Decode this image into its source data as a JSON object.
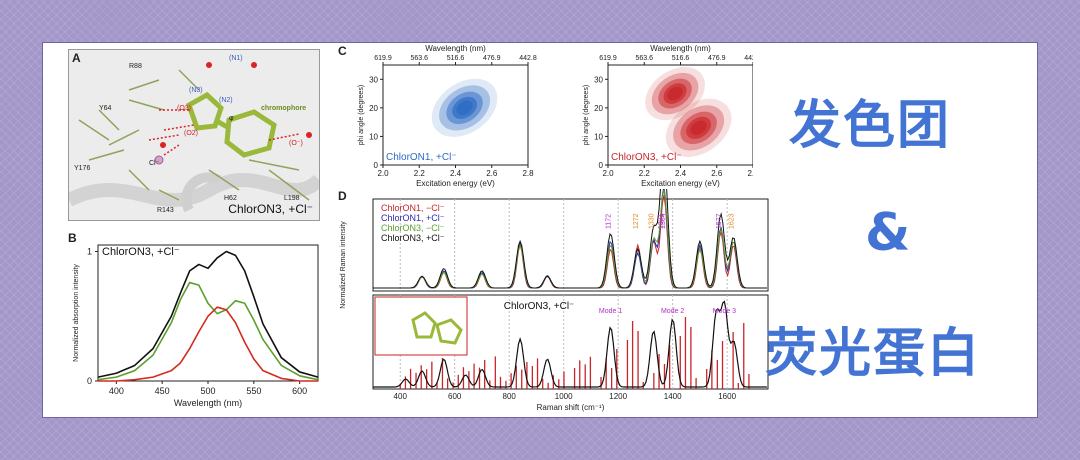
{
  "title": {
    "line1": "发色团",
    "amp": "&",
    "line2": "荧光蛋白"
  },
  "panel_a": {
    "label": "A",
    "caption": "ChlorON3, +Cl⁻",
    "residues": [
      "R88",
      "Y64",
      "Y176",
      "R143",
      "H62",
      "L198"
    ],
    "atoms": [
      "(N1)",
      "(N3)",
      "(N2)",
      "(O3)",
      "(O2)",
      "(O⁻)",
      "Cl⁻",
      "φ"
    ],
    "chromophore_label": "chromophore"
  },
  "panel_b": {
    "label": "B",
    "legend": "ChlorON3, +Cl⁻",
    "xlabel": "Wavelength (nm)",
    "ylabel": "Normalized absorption intensity",
    "xticks": [
      "400",
      "450",
      "500",
      "550",
      "600"
    ],
    "yticks": [
      "0",
      "1"
    ]
  },
  "panel_c": {
    "label": "C",
    "top_label": "Wavelength (nm)",
    "top_ticks": [
      "619.9",
      "563.6",
      "516.6",
      "476.9",
      "442.8"
    ],
    "xlabel": "Excitation energy (eV)",
    "xticks": [
      "2.0",
      "2.2",
      "2.4",
      "2.6",
      "2.8"
    ],
    "ylabel": "phi angle (degrees)",
    "yticks": [
      "0",
      "10",
      "20",
      "30"
    ],
    "left_legend": "ChlorON1, +Cl⁻",
    "right_legend": "ChlorON3, +Cl⁻",
    "left_color": "#2c6bc4",
    "right_color": "#c8262a"
  },
  "panel_d": {
    "label": "D",
    "ylabel_top": "Normalized Raman intensity",
    "xlabel": "Raman shift (cm⁻¹)",
    "xticks": [
      "400",
      "600",
      "800",
      "1000",
      "1200",
      "1400",
      "1600"
    ],
    "legend": [
      {
        "name": "ChlorON1, −Cl⁻",
        "color": "#c8262a"
      },
      {
        "name": "ChlorON1, +Cl⁻",
        "color": "#2a2ab0"
      },
      {
        "name": "ChlorON3, −Cl⁻",
        "color": "#5aa02c"
      },
      {
        "name": "ChlorON3, +Cl⁻",
        "color": "#111111"
      }
    ],
    "peak_labels": [
      {
        "text": "1172",
        "color": "#b12fc9"
      },
      {
        "text": "1272",
        "color": "#e08a1c"
      },
      {
        "text": "1330",
        "color": "#e08a1c"
      },
      {
        "text": "1371",
        "color": "#b12fc9"
      },
      {
        "text": "1364",
        "color": "#b12fc9"
      },
      {
        "text": "1577",
        "color": "#b12fc9"
      },
      {
        "text": "1623",
        "color": "#e08a1c"
      }
    ],
    "lower_caption": "ChlorON3, +Cl⁻",
    "modes": [
      "Mode 1",
      "Mode 2",
      "Mode 3"
    ]
  },
  "chart_data": [
    {
      "type": "line",
      "panel": "B",
      "xlabel": "Wavelength (nm)",
      "ylabel": "Normalized absorption intensity",
      "xlim": [
        380,
        620
      ],
      "ylim": [
        0,
        1.05
      ],
      "x": [
        380,
        400,
        420,
        440,
        460,
        470,
        480,
        490,
        500,
        510,
        520,
        530,
        540,
        550,
        560,
        580,
        600,
        620
      ],
      "series": [
        {
          "name": "ChlorON3, +Cl⁻",
          "color": "#111111",
          "values": [
            0.03,
            0.06,
            0.12,
            0.25,
            0.5,
            0.68,
            0.85,
            0.9,
            0.87,
            0.95,
            1.0,
            0.97,
            0.85,
            0.65,
            0.44,
            0.18,
            0.07,
            0.03
          ]
        },
        {
          "color": "#5aa02c",
          "values": [
            0.01,
            0.03,
            0.08,
            0.2,
            0.45,
            0.63,
            0.76,
            0.74,
            0.6,
            0.52,
            0.55,
            0.62,
            0.6,
            0.47,
            0.32,
            0.12,
            0.04,
            0.01
          ]
        },
        {
          "color": "#d42a1f",
          "values": [
            0.0,
            0.0,
            0.01,
            0.03,
            0.08,
            0.14,
            0.25,
            0.38,
            0.5,
            0.57,
            0.55,
            0.45,
            0.3,
            0.17,
            0.08,
            0.02,
            0.0,
            0.0
          ]
        }
      ]
    },
    {
      "type": "heatmap",
      "panel": "C-left",
      "title": "ChlorON1, +Cl⁻",
      "xlabel": "Excitation energy (eV)",
      "ylabel": "phi angle (degrees)",
      "xlim": [
        2.0,
        2.8
      ],
      "ylim": [
        0,
        35
      ],
      "peaks": [
        {
          "x": 2.45,
          "y": 20,
          "weight": 1.0
        }
      ]
    },
    {
      "type": "heatmap",
      "panel": "C-right",
      "title": "ChlorON3, +Cl⁻",
      "xlabel": "Excitation energy (eV)",
      "ylabel": "phi angle (degrees)",
      "xlim": [
        2.0,
        2.8
      ],
      "ylim": [
        0,
        35
      ],
      "peaks": [
        {
          "x": 2.37,
          "y": 25,
          "weight": 0.9
        },
        {
          "x": 2.5,
          "y": 13,
          "weight": 1.0
        }
      ]
    },
    {
      "type": "line",
      "panel": "D-top",
      "xlabel": "Raman shift (cm⁻¹)",
      "xlim": [
        300,
        1750
      ],
      "peaks_cm": [
        480,
        560,
        700,
        840,
        940,
        1172,
        1272,
        1330,
        1364,
        1371,
        1500,
        1577,
        1623
      ],
      "series": [
        {
          "name": "ChlorON1, −Cl⁻",
          "color": "#c8262a",
          "heights": [
            0.15,
            0.2,
            0.18,
            0.55,
            0.15,
            0.5,
            0.55,
            0.6,
            0.6,
            0.65,
            0.5,
            0.72,
            0.55
          ]
        },
        {
          "name": "ChlorON1, +Cl⁻",
          "color": "#2a2ab0",
          "heights": [
            0.15,
            0.22,
            0.2,
            0.58,
            0.16,
            0.6,
            0.45,
            0.6,
            0.65,
            0.7,
            0.55,
            0.78,
            0.6
          ]
        },
        {
          "name": "ChlorON3, −Cl⁻",
          "color": "#5aa02c",
          "heights": [
            0.14,
            0.2,
            0.18,
            0.55,
            0.15,
            0.55,
            0.5,
            0.62,
            0.62,
            0.68,
            0.5,
            0.75,
            0.6
          ]
        },
        {
          "name": "ChlorON3, +Cl⁻",
          "color": "#111111",
          "heights": [
            0.15,
            0.25,
            0.22,
            0.6,
            0.15,
            0.7,
            0.5,
            0.75,
            0.85,
            0.9,
            0.6,
            0.95,
            0.65
          ]
        }
      ]
    },
    {
      "type": "line",
      "panel": "D-bottom",
      "title": "ChlorON3, +Cl⁻",
      "xlabel": "Raman shift (cm⁻¹)",
      "xlim": [
        300,
        1750
      ],
      "peaks_cm": [
        420,
        480,
        560,
        640,
        700,
        840,
        940,
        1172,
        1330,
        1400,
        1560,
        1590,
        1625
      ],
      "heights": [
        0.1,
        0.2,
        0.35,
        0.15,
        0.22,
        0.6,
        0.35,
        0.75,
        0.7,
        0.85,
        0.9,
        1.0,
        0.55
      ],
      "stick_color": "#c8262a"
    }
  ]
}
